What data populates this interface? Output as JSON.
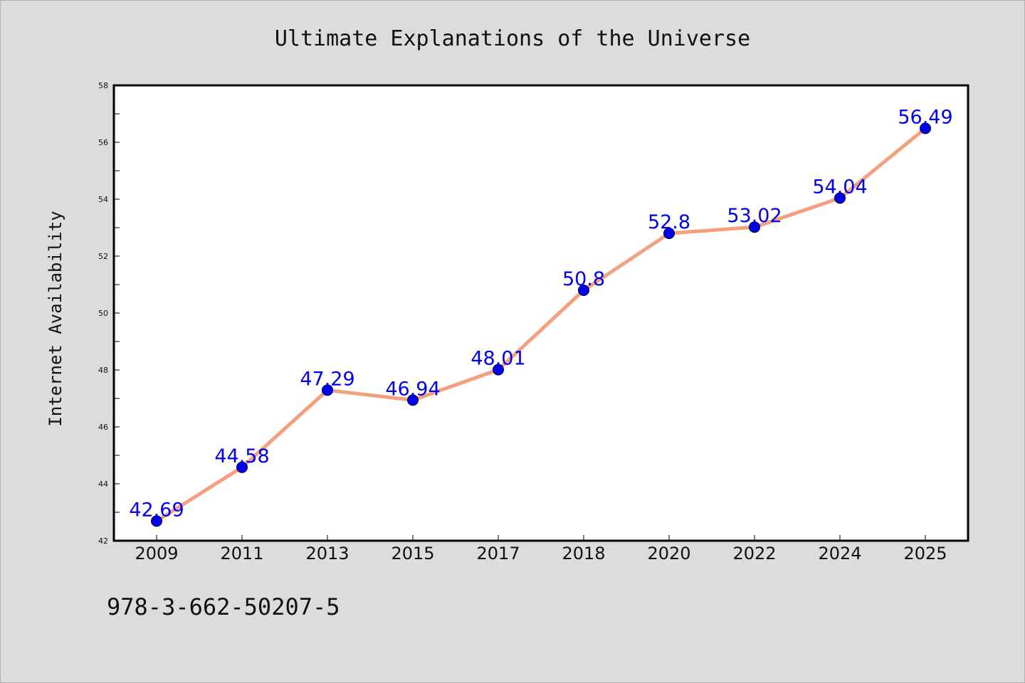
{
  "chart_data": {
    "type": "line",
    "title": "Ultimate Explanations of the Universe",
    "xlabel": "",
    "ylabel": "Internet Availability",
    "categories": [
      "2009",
      "2011",
      "2013",
      "2015",
      "2017",
      "2018",
      "2020",
      "2022",
      "2024",
      "2025"
    ],
    "values": [
      42.69,
      44.58,
      47.29,
      46.94,
      48.01,
      50.8,
      52.8,
      53.02,
      54.04,
      56.49
    ],
    "ylim": [
      42,
      58
    ],
    "yticks": [
      "42",
      "44",
      "46",
      "48",
      "50",
      "52",
      "54",
      "56",
      "58"
    ],
    "grid": false,
    "data_labels": true,
    "colors": {
      "line": "#f4a07e",
      "marker": "#0000ee",
      "label": "#0000ee",
      "background": "#dcdcdc",
      "plot_background": "#ffffff"
    }
  },
  "footer": {
    "isbn": "978-3-662-50207-5"
  }
}
